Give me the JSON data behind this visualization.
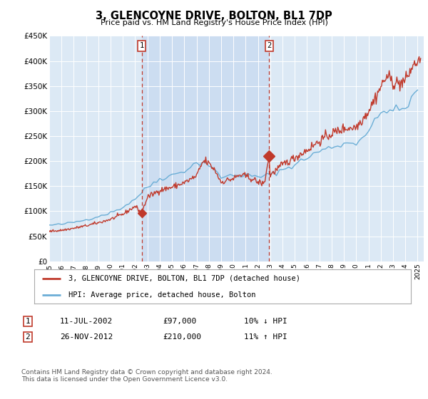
{
  "title": "3, GLENCOYNE DRIVE, BOLTON, BL1 7DP",
  "subtitle": "Price paid vs. HM Land Registry's House Price Index (HPI)",
  "bg_color": "#dce9f5",
  "plot_bg_color": "#dce9f5",
  "hpi_color": "#6baed6",
  "sale_color": "#c0392b",
  "dashed_color": "#c0392b",
  "shade_color": "#c6d9f0",
  "ylim": [
    0,
    450000
  ],
  "yticks": [
    0,
    50000,
    100000,
    150000,
    200000,
    250000,
    300000,
    350000,
    400000,
    450000
  ],
  "ytick_labels": [
    "£0",
    "£50K",
    "£100K",
    "£150K",
    "£200K",
    "£250K",
    "£300K",
    "£350K",
    "£400K",
    "£450K"
  ],
  "xlim_start": 1995.0,
  "xlim_end": 2025.5,
  "sale1_year": 2002.53,
  "sale1_price": 97000,
  "sale1_label": "1",
  "sale1_date": "11-JUL-2002",
  "sale1_pct": "10% ↓ HPI",
  "sale2_year": 2012.91,
  "sale2_price": 210000,
  "sale2_label": "2",
  "sale2_date": "26-NOV-2012",
  "sale2_pct": "11% ↑ HPI",
  "legend_sale_label": "3, GLENCOYNE DRIVE, BOLTON, BL1 7DP (detached house)",
  "legend_hpi_label": "HPI: Average price, detached house, Bolton",
  "footer": "Contains HM Land Registry data © Crown copyright and database right 2024.\nThis data is licensed under the Open Government Licence v3.0."
}
